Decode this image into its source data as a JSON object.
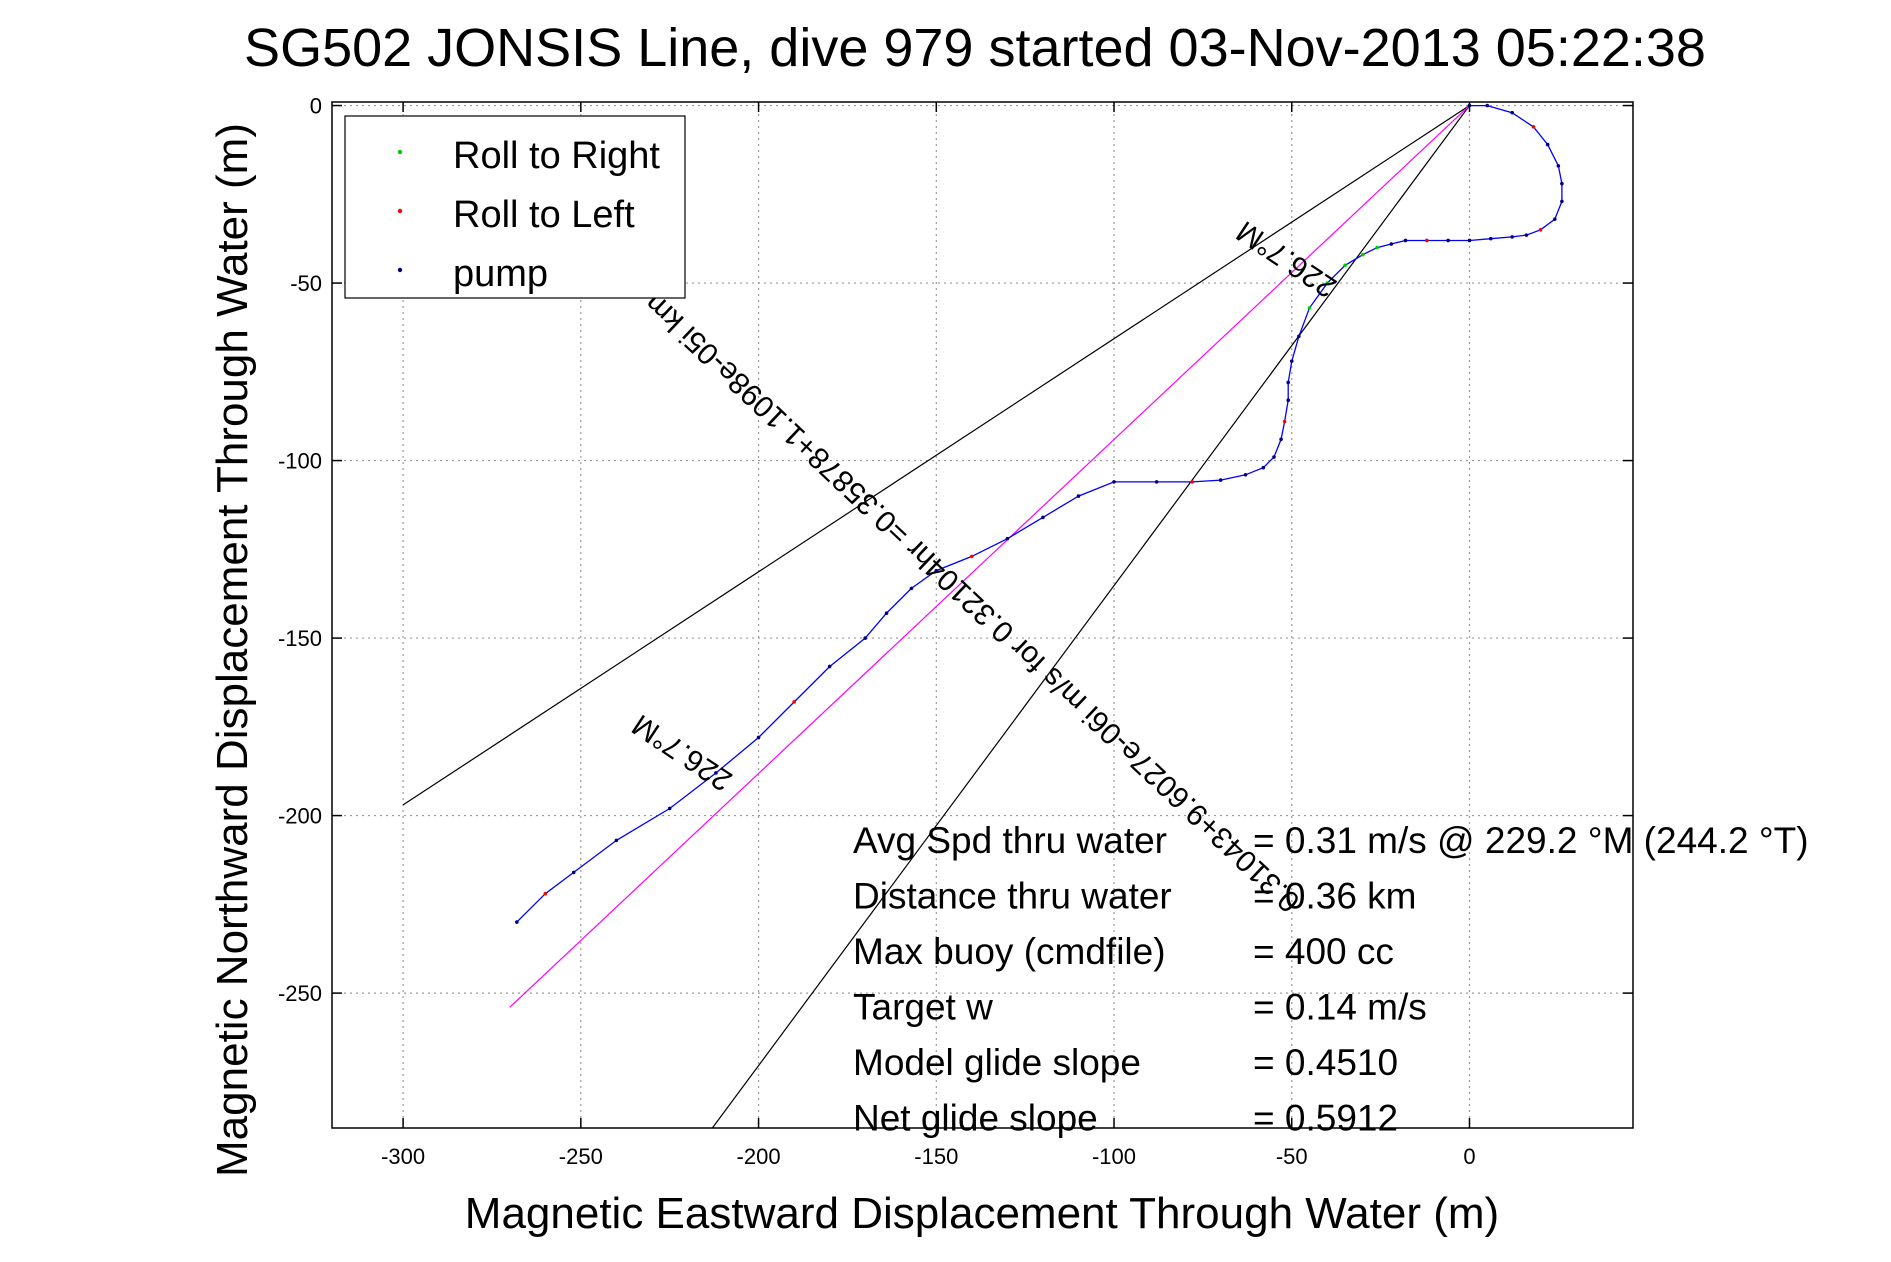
{
  "chart_data": {
    "type": "line",
    "title": "SG502 JONSIS Line, dive 979 started 03-Nov-2013 05:22:38",
    "xlabel": "Magnetic Eastward Displacement Through Water (m)",
    "ylabel": "Magnetic Northward Displacement Through Water (m)",
    "xlim": [
      -320,
      46
    ],
    "ylim": [
      -288,
      1
    ],
    "xticks": [
      -300,
      -250,
      -200,
      -150,
      -100,
      -50,
      0
    ],
    "yticks": [
      0,
      -50,
      -100,
      -150,
      -200,
      -250
    ],
    "grid": true,
    "legend_position": "top-left",
    "legend": [
      {
        "label": "Roll to Right",
        "color": "#00cc00"
      },
      {
        "label": "Roll to Left",
        "color": "#ff0000"
      },
      {
        "label": "pump",
        "color": "#000080"
      }
    ],
    "track": {
      "color": "#0000ff",
      "x": [
        0,
        5,
        12,
        18,
        22,
        25,
        26,
        26,
        24,
        20,
        16,
        12,
        6,
        0,
        -6,
        -12,
        -18,
        -22,
        -26,
        -30,
        -35,
        -40,
        -45,
        -48,
        -50,
        -51,
        -51,
        -52,
        -53,
        -55,
        -58,
        -63,
        -70,
        -78,
        -88,
        -100,
        -110,
        -120,
        -130,
        -140,
        -150,
        -157,
        -164,
        -170,
        -180,
        -190,
        -200,
        -212,
        -225,
        -240,
        -252,
        -260,
        -268
      ],
      "y": [
        0,
        0,
        -2,
        -6,
        -11,
        -17,
        -22,
        -27,
        -32,
        -35,
        -36.5,
        -37,
        -37.5,
        -38,
        -38,
        -38,
        -38,
        -39,
        -40,
        -42,
        -45,
        -50,
        -57,
        -65,
        -72,
        -78,
        -83,
        -89,
        -94,
        -99,
        -102,
        -104,
        -105.5,
        -106,
        -106,
        -106,
        -110,
        -116,
        -122,
        -127,
        -131,
        -136,
        -143,
        -150,
        -158,
        -168,
        -178,
        -188,
        -198,
        -207,
        -216,
        -222,
        -230
      ]
    },
    "reference_lines": [
      {
        "x": [
          0,
          -300
        ],
        "y": [
          0,
          -197
        ]
      },
      {
        "x": [
          0,
          -213
        ],
        "y": [
          0,
          -288
        ]
      },
      {
        "x": [
          0,
          -270
        ],
        "y": [
          0,
          -254
        ]
      }
    ],
    "reference_line_colors": {
      "bounds": "#000000",
      "mean": "#ff00ff"
    },
    "annotations": [
      {
        "text": "226.7°M",
        "x": -50,
        "y": -41,
        "rotation": 213.6
      },
      {
        "text": "226.7°M",
        "x": -220,
        "y": -180,
        "rotation": 213.6
      },
      {
        "text": "0.31043+9.6027e-06i m/s for 0.32104hr =0.35878+1.1098e-05i km",
        "x": -138,
        "y": -138,
        "rotation": 223.3
      }
    ],
    "stats": [
      {
        "label": "Avg Spd thru water",
        "value": "=  0.31 m/s @ 229.2 °M (244.2 °T)"
      },
      {
        "label": "Distance thru water",
        "value": "=  0.36 km"
      },
      {
        "label": "Max buoy (cmdfile)",
        "value": "= 400 cc"
      },
      {
        "label": "Target w",
        "value": "= 0.14 m/s"
      },
      {
        "label": "Model glide slope",
        "value": "= 0.4510"
      },
      {
        "label": "Net glide slope",
        "value": "= 0.5912"
      }
    ]
  }
}
